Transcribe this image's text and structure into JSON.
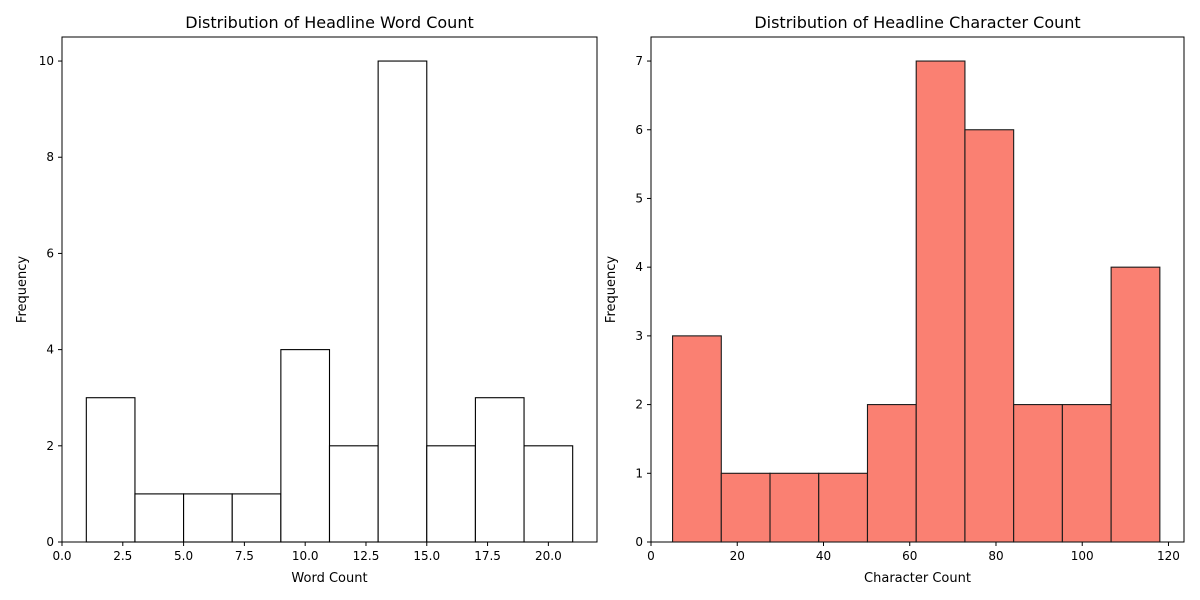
{
  "chart_data": [
    {
      "type": "bar",
      "title": "Distribution of Headline Word Count",
      "xlabel": "Word Count",
      "ylabel": "Frequency",
      "bin_edges": [
        1,
        3,
        5,
        7,
        9,
        11,
        13,
        15,
        17,
        19,
        21
      ],
      "values": [
        3,
        1,
        1,
        1,
        4,
        2,
        10,
        2,
        3,
        2
      ],
      "xlim": [
        0,
        22
      ],
      "ylim": [
        0,
        10.5
      ],
      "xticks": [
        0,
        2.5,
        5,
        7.5,
        10,
        12.5,
        15,
        17.5,
        20
      ],
      "xtick_labels": [
        "0.0",
        "2.5",
        "5.0",
        "7.5",
        "10.0",
        "12.5",
        "15.0",
        "17.5",
        "20.0"
      ],
      "yticks": [
        0,
        2,
        4,
        6,
        8,
        10
      ],
      "ytick_labels": [
        "0",
        "2",
        "4",
        "6",
        "8",
        "10"
      ],
      "bar_color": "#ffffff",
      "edge_color": "#000000",
      "grid": false
    },
    {
      "type": "bar",
      "title": "Distribution of Headline Character Count",
      "xlabel": "Character Count",
      "ylabel": "Frequency",
      "bin_edges": [
        5,
        16.3,
        27.6,
        38.9,
        50.2,
        61.5,
        72.8,
        84.1,
        95.4,
        106.7,
        118
      ],
      "values": [
        3,
        1,
        1,
        1,
        2,
        7,
        6,
        2,
        2,
        4
      ],
      "xlim": [
        0,
        123.6
      ],
      "ylim": [
        0,
        7.35
      ],
      "xticks": [
        0,
        20,
        40,
        60,
        80,
        100,
        120
      ],
      "xtick_labels": [
        "0",
        "20",
        "40",
        "60",
        "80",
        "100",
        "120"
      ],
      "yticks": [
        0,
        1,
        2,
        3,
        4,
        5,
        6,
        7
      ],
      "ytick_labels": [
        "0",
        "1",
        "2",
        "3",
        "4",
        "5",
        "6",
        "7"
      ],
      "bar_color": "#fa8072",
      "edge_color": "#1a1a1a",
      "grid": false
    }
  ]
}
